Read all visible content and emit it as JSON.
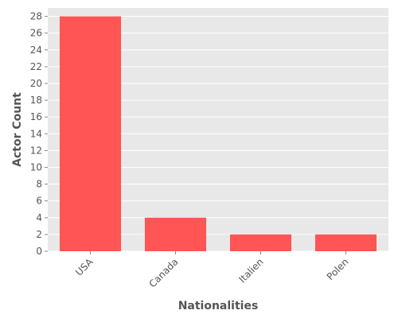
{
  "chart_data": {
    "type": "bar",
    "title": "",
    "xlabel": "Nationalities",
    "ylabel": "Actor Count",
    "categories": [
      "USA",
      "Canada",
      "Italien",
      "Polen"
    ],
    "values": [
      28,
      4,
      2,
      2
    ],
    "ylim": [
      0,
      29
    ],
    "yticks": [
      0,
      2,
      4,
      6,
      8,
      10,
      12,
      14,
      16,
      18,
      20,
      22,
      24,
      26,
      28
    ],
    "grid": true,
    "legend": "none",
    "colors": {
      "bar": "#ff5555",
      "plot_background": "#e8e8e8",
      "grid": "#ffffff",
      "text": "#555555"
    }
  }
}
